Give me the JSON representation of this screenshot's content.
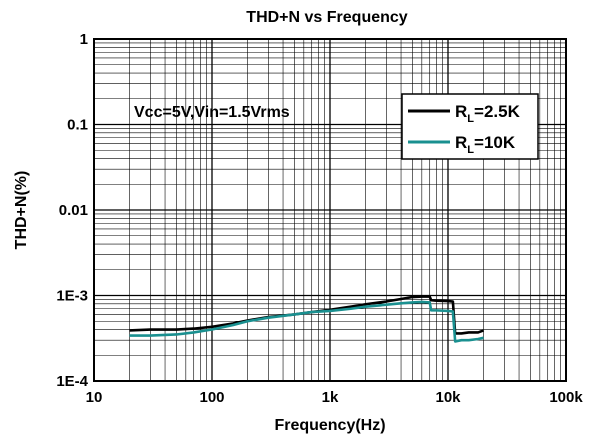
{
  "chart_data": {
    "type": "line",
    "title": "THD+N vs Frequency",
    "xlabel": "Frequency(Hz)",
    "ylabel": "THD+N(%)",
    "x_scale": "log",
    "y_scale": "log",
    "xlim": [
      10,
      100000
    ],
    "ylim": [
      0.0001,
      1
    ],
    "grid": true,
    "x_ticks": [
      {
        "value": 10,
        "label": "10"
      },
      {
        "value": 100,
        "label": "100"
      },
      {
        "value": 1000,
        "label": "1k"
      },
      {
        "value": 10000,
        "label": "10k"
      },
      {
        "value": 100000,
        "label": "100k"
      }
    ],
    "y_ticks": [
      {
        "value": 1,
        "label": "1"
      },
      {
        "value": 0.1,
        "label": "0.1"
      },
      {
        "value": 0.01,
        "label": "0.01"
      },
      {
        "value": 0.001,
        "label": "1E-3"
      },
      {
        "value": 0.0001,
        "label": "1E-4"
      }
    ],
    "annotation": "Vcc=5V,Vin=1.5Vrms",
    "legend_position": "top-right",
    "series": [
      {
        "name": "R_L=2.5K",
        "legend_main": "R",
        "legend_sub": "L",
        "legend_rest": "=2.5K",
        "color": "#000000",
        "x": [
          20,
          30,
          50,
          70,
          100,
          150,
          200,
          300,
          500,
          700,
          1000,
          1500,
          2000,
          3000,
          4000,
          5000,
          6000,
          7000,
          7200,
          8000,
          10000,
          11000,
          11500,
          13000,
          15000,
          18000,
          20000
        ],
        "y": [
          0.00039,
          0.0004,
          0.0004,
          0.00041,
          0.00043,
          0.00047,
          0.00051,
          0.00056,
          0.0006,
          0.00064,
          0.00068,
          0.00074,
          0.00079,
          0.00085,
          0.00091,
          0.00096,
          0.00097,
          0.00097,
          0.00088,
          0.00087,
          0.00086,
          0.00085,
          0.00036,
          0.00036,
          0.00037,
          0.00037,
          0.00039
        ]
      },
      {
        "name": "R_L=10K",
        "legend_main": "R",
        "legend_sub": "L",
        "legend_rest": "=10K",
        "color": "#1a9090",
        "x": [
          20,
          30,
          50,
          70,
          100,
          150,
          200,
          300,
          500,
          700,
          1000,
          1500,
          2000,
          3000,
          4000,
          5000,
          6000,
          7000,
          7200,
          8000,
          10000,
          11000,
          11500,
          13000,
          15000,
          18000,
          20000
        ],
        "y": [
          0.00034,
          0.00034,
          0.00035,
          0.00037,
          0.0004,
          0.00045,
          0.0005,
          0.00055,
          0.0006,
          0.00064,
          0.00066,
          0.0007,
          0.00074,
          0.00078,
          0.00081,
          0.00083,
          0.00084,
          0.00083,
          0.00067,
          0.00067,
          0.00066,
          0.00065,
          0.00029,
          0.0003,
          0.0003,
          0.00031,
          0.00032
        ]
      }
    ]
  }
}
